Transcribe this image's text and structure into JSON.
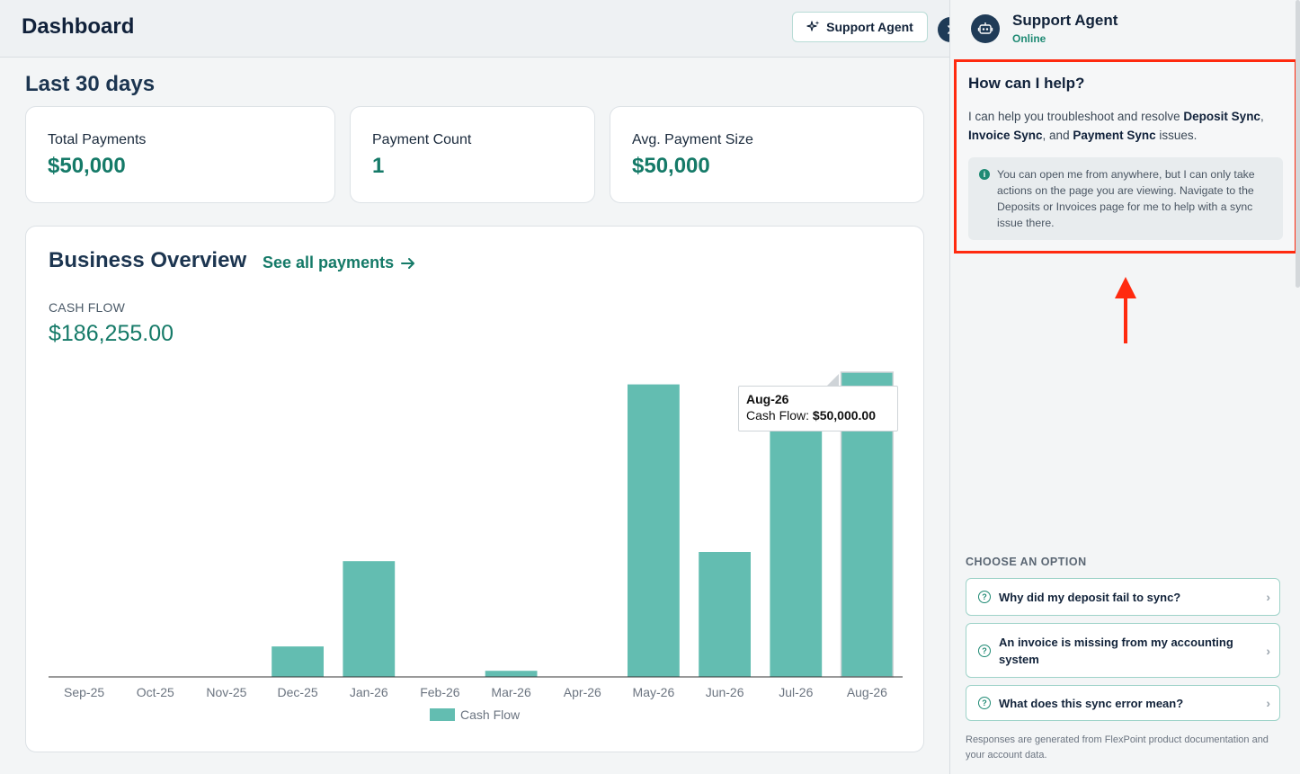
{
  "header": {
    "title": "Dashboard",
    "support_agent_button": "Support Agent"
  },
  "main": {
    "period_title": "Last 30 days",
    "stats": [
      {
        "label": "Total Payments",
        "value": "$50,000"
      },
      {
        "label": "Payment Count",
        "value": "1"
      },
      {
        "label": "Avg. Payment Size",
        "value": "$50,000"
      }
    ],
    "overview": {
      "heading": "Business Overview",
      "see_all_link": "See all payments",
      "cash_flow_label": "CASH FLOW",
      "cash_flow_total": "$186,255.00"
    },
    "tooltip": {
      "title": "Aug-26",
      "label": "Cash Flow: ",
      "value": "$50,000.00"
    }
  },
  "chart_data": {
    "type": "bar",
    "categories": [
      "Sep-25",
      "Oct-25",
      "Nov-25",
      "Dec-25",
      "Jan-26",
      "Feb-26",
      "Mar-26",
      "Apr-26",
      "May-26",
      "Jun-26",
      "Jul-26",
      "Aug-26"
    ],
    "series": [
      {
        "name": "Cash Flow",
        "values": [
          0,
          0,
          0,
          5000,
          19000,
          0,
          1000,
          0,
          48000,
          20500,
          42000,
          50000
        ]
      }
    ],
    "ylim": [
      0,
      50000
    ],
    "color": "#63bdb1",
    "legend": "bottom",
    "grid": false
  },
  "panel": {
    "agent_name": "Support Agent",
    "agent_status": "Online",
    "help_title": "How can I help?",
    "help_text_1": "I can help you troubleshoot and resolve ",
    "help_text_b1": "Deposit Sync",
    "help_text_2": ", ",
    "help_text_b2": "Invoice Sync",
    "help_text_3": ", and ",
    "help_text_b3": "Payment Sync",
    "help_text_4": " issues.",
    "help_note": "You can open me from anywhere, but I can only take actions on the page you are viewing. Navigate to the Deposits or Invoices page for me to help with a sync issue there.",
    "choose_label": "CHOOSE AN OPTION",
    "options": [
      "Why did my deposit fail to sync?",
      "An invoice is missing from my accounting system",
      "What does this sync error mean?"
    ],
    "footnote": "Responses are generated from FlexPoint product documentation and your account data."
  },
  "colors": {
    "accent": "#157a68",
    "bar": "#63bdb1",
    "highlight_border": "#ff2a0f",
    "dark": "#1f3b57"
  }
}
